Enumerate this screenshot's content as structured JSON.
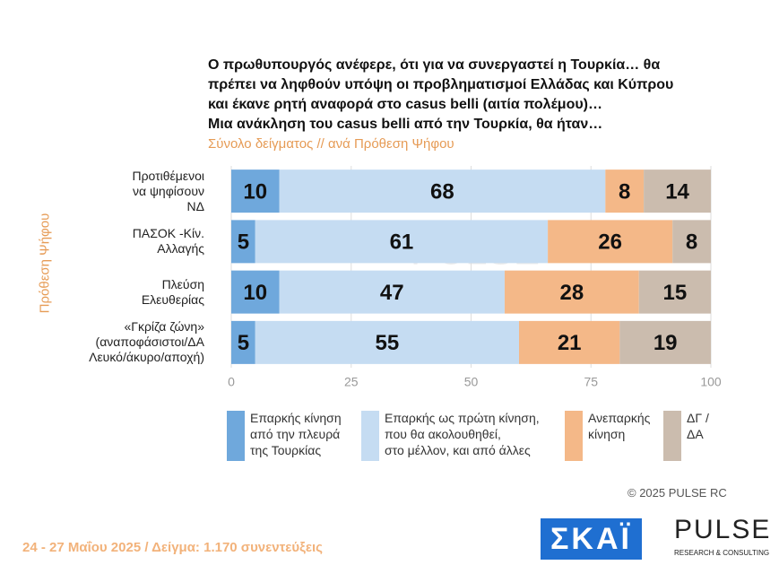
{
  "chart_data": {
    "type": "stacked-barh",
    "title": "Ο πρωθυπουργός ανέφερε, ότι για να συνεργαστεί η Τουρκία… θα\nπρέπει να ληφθούν υπόψη οι προβληματισμοί Ελλάδας και Κύπρου\nκαι έκανε ρητή αναφορά στο casus belli (αιτία πολέμου)…\nΜια ανάκληση του casus belli από την Τουρκία, θα ήταν…",
    "subtitle": "Σύνολο δείγματος // ανά Πρόθεση Ψήφου",
    "y_label": "Πρόθεση Ψήφου",
    "categories": [
      "Προτιθέμενοι\nνα ψηφίσουν\nΝΔ",
      "ΠΑΣΟΚ -Κίν.\nΑλλαγής",
      "Πλεύση\nΕλευθερίας",
      "«Γκρίζα ζώνη»\n(αναποφάσιστοι/ΔΑ\nΛευκό/άκυρο/αποχή)"
    ],
    "series": [
      {
        "name": "Επαρκής κίνηση\nαπό την πλευρά\nτης Τουρκίας",
        "color": "#6fa8dc",
        "values": [
          10,
          5,
          10,
          5
        ]
      },
      {
        "name": "Επαρκής ως πρώτη κίνηση,\nπου θα ακολουθηθεί,\nστο μέλλον, και από άλλες",
        "color": "#c5dcf2",
        "values": [
          68,
          61,
          47,
          55
        ]
      },
      {
        "name": "Ανεπαρκής\nκίνηση",
        "color": "#f4b888",
        "values": [
          8,
          26,
          28,
          21
        ]
      },
      {
        "name": "ΔΓ /\nΔΑ",
        "color": "#cbbcae",
        "values": [
          14,
          8,
          15,
          19
        ]
      }
    ],
    "xlim": [
      0,
      100
    ],
    "xticks": [
      0,
      25,
      50,
      75,
      100
    ],
    "grid": true,
    "watermark": "PULSE",
    "copyright": "© 2025  PULSE RC",
    "footer": "24 - 27 Μαΐου 2025  /  Δείγμα:  1.170 συνεντεύξεις",
    "logo_left": "ΣΚΑΪ",
    "logo_right": "PULSE",
    "logo_right_sub": "RESEARCH & CONSULTING"
  }
}
